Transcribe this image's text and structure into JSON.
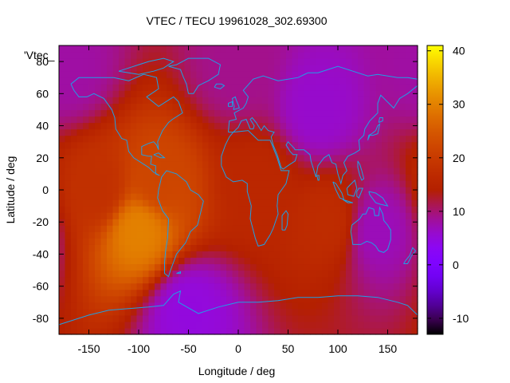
{
  "chart_data": {
    "type": "heatmap",
    "title": "VTEC / TECU 19961028_302.69300",
    "xlabel": "Longitude / deg",
    "ylabel": "Latitude / deg",
    "xlim": [
      -180,
      180
    ],
    "ylim": [
      -90,
      90
    ],
    "x_ticks": [
      -150,
      -100,
      -50,
      0,
      50,
      100,
      150
    ],
    "y_ticks": [
      -80,
      -60,
      -40,
      -20,
      0,
      20,
      40,
      60,
      80
    ],
    "colorbar": {
      "range": [
        -13,
        41
      ],
      "ticks": [
        -10,
        0,
        10,
        20,
        30,
        40
      ],
      "palette": "black-blue-purple-red-orange-yellow"
    },
    "legend_label": "'Vtec_",
    "overlay": "coastlines",
    "coastline_color": "#1ea0e6",
    "grid": false,
    "field_features": [
      {
        "lon": -100,
        "lat": -25,
        "value": 30,
        "note": "maximum"
      },
      {
        "lon": -80,
        "lat": 5,
        "value": 22
      },
      {
        "lon": -140,
        "lat": 0,
        "value": 18
      },
      {
        "lon": 20,
        "lat": 5,
        "value": 16
      },
      {
        "lon": 90,
        "lat": -20,
        "value": 17
      },
      {
        "lon": 80,
        "lat": 50,
        "value": 6,
        "note": "minimum, northern Asia"
      },
      {
        "lon": 140,
        "lat": -25,
        "value": 7
      },
      {
        "lon": -50,
        "lat": -75,
        "value": 5,
        "note": "Antarctica"
      },
      {
        "lon": -170,
        "lat": 75,
        "value": 8
      },
      {
        "lon": 0,
        "lat": 75,
        "value": 9
      }
    ]
  }
}
